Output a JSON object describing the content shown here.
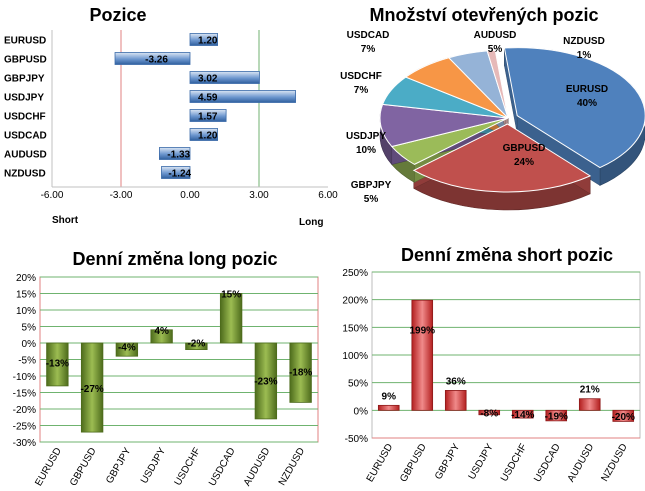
{
  "chart_data": [
    {
      "id": "pozice",
      "type": "bar",
      "orientation": "horizontal",
      "title": "Pozice",
      "categories": [
        "EURUSD",
        "GBPUSD",
        "GBPJPY",
        "USDJPY",
        "USDCHF",
        "USDCAD",
        "AUDUSD",
        "NZDUSD"
      ],
      "values": [
        1.2,
        -3.26,
        3.02,
        4.59,
        1.57,
        1.2,
        -1.33,
        -1.24
      ],
      "value_labels": [
        "1.20",
        "-3.26",
        "3.02",
        "4.59",
        "1.57",
        "1.20",
        "-1.33",
        "-1.24"
      ],
      "xlim": [
        -6,
        6
      ],
      "xticks": [
        -6,
        -3,
        0,
        3,
        6
      ],
      "xtick_labels": [
        "-6.00",
        "-3.00",
        "0.00",
        "3.00",
        "6.00"
      ],
      "left_label": "Short",
      "right_label": "Long",
      "colors": {
        "bar": "#4f7fc0",
        "bar_light": "#dbe6f4",
        "short_line": "#e08080",
        "long_line": "#70b070"
      }
    },
    {
      "id": "mnozstvi",
      "type": "pie",
      "title": "Množství otevřených pozic",
      "labels": [
        "EURUSD",
        "GBPUSD",
        "GBPJPY",
        "USDJPY",
        "USDCHF",
        "USDCAD",
        "AUDUSD",
        "NZDUSD"
      ],
      "values": [
        40,
        24,
        5,
        10,
        7,
        7,
        5,
        1
      ],
      "value_labels": [
        "40%",
        "24%",
        "5%",
        "10%",
        "7%",
        "7%",
        "5%",
        "1%"
      ],
      "colors": [
        "#4f81bd",
        "#c0504d",
        "#9bbb59",
        "#8064a2",
        "#4bacc6",
        "#f79646",
        "#95b3d7",
        "#e6b9b8"
      ]
    },
    {
      "id": "long",
      "type": "bar",
      "title": "Denní změna long pozic",
      "categories": [
        "EURUSD",
        "GBPUSD",
        "GBPJPY",
        "USDJPY",
        "USDCHF",
        "USDCAD",
        "AUDUSD",
        "NZDUSD"
      ],
      "values": [
        -13,
        -27,
        -4,
        4,
        -2,
        15,
        -23,
        -18
      ],
      "value_labels": [
        "-13%",
        "-27%",
        "-4%",
        "4%",
        "-2%",
        "15%",
        "-23%",
        "-18%"
      ],
      "ylim": [
        -30,
        20
      ],
      "yticks": [
        20,
        15,
        10,
        5,
        0,
        -5,
        -10,
        -15,
        -20,
        -25,
        -30
      ],
      "ytick_labels": [
        "20%",
        "15%",
        "10%",
        "5%",
        "0%",
        "-5%",
        "-10%",
        "-15%",
        "-20%",
        "-25%",
        "-30%"
      ],
      "colors": {
        "bar": "#6e8f2c",
        "bar_light": "#c7dc96",
        "grid": "#6fb36f",
        "border": "#e08080"
      }
    },
    {
      "id": "short",
      "type": "bar",
      "title": "Denní změna short pozic",
      "categories": [
        "EURUSD",
        "GBPUSD",
        "GBPJPY",
        "USDJPY",
        "USDCHF",
        "USDCAD",
        "AUDUSD",
        "NZDUSD"
      ],
      "values": [
        9,
        199,
        36,
        -8,
        -14,
        -19,
        21,
        -20
      ],
      "value_labels": [
        "9%",
        "199%",
        "36%",
        "-8%",
        "-14%",
        "-19%",
        "21%",
        "-20%"
      ],
      "ylim": [
        -50,
        250
      ],
      "yticks": [
        250,
        200,
        150,
        100,
        50,
        0,
        -50
      ],
      "ytick_labels": [
        "250%",
        "200%",
        "150%",
        "100%",
        "50%",
        "0%",
        "-50%"
      ],
      "colors": {
        "bar": "#d63b3b",
        "bar_light": "#f1a9a9",
        "grid": "#6fb36f",
        "grid_neg": "#e08080"
      }
    }
  ]
}
